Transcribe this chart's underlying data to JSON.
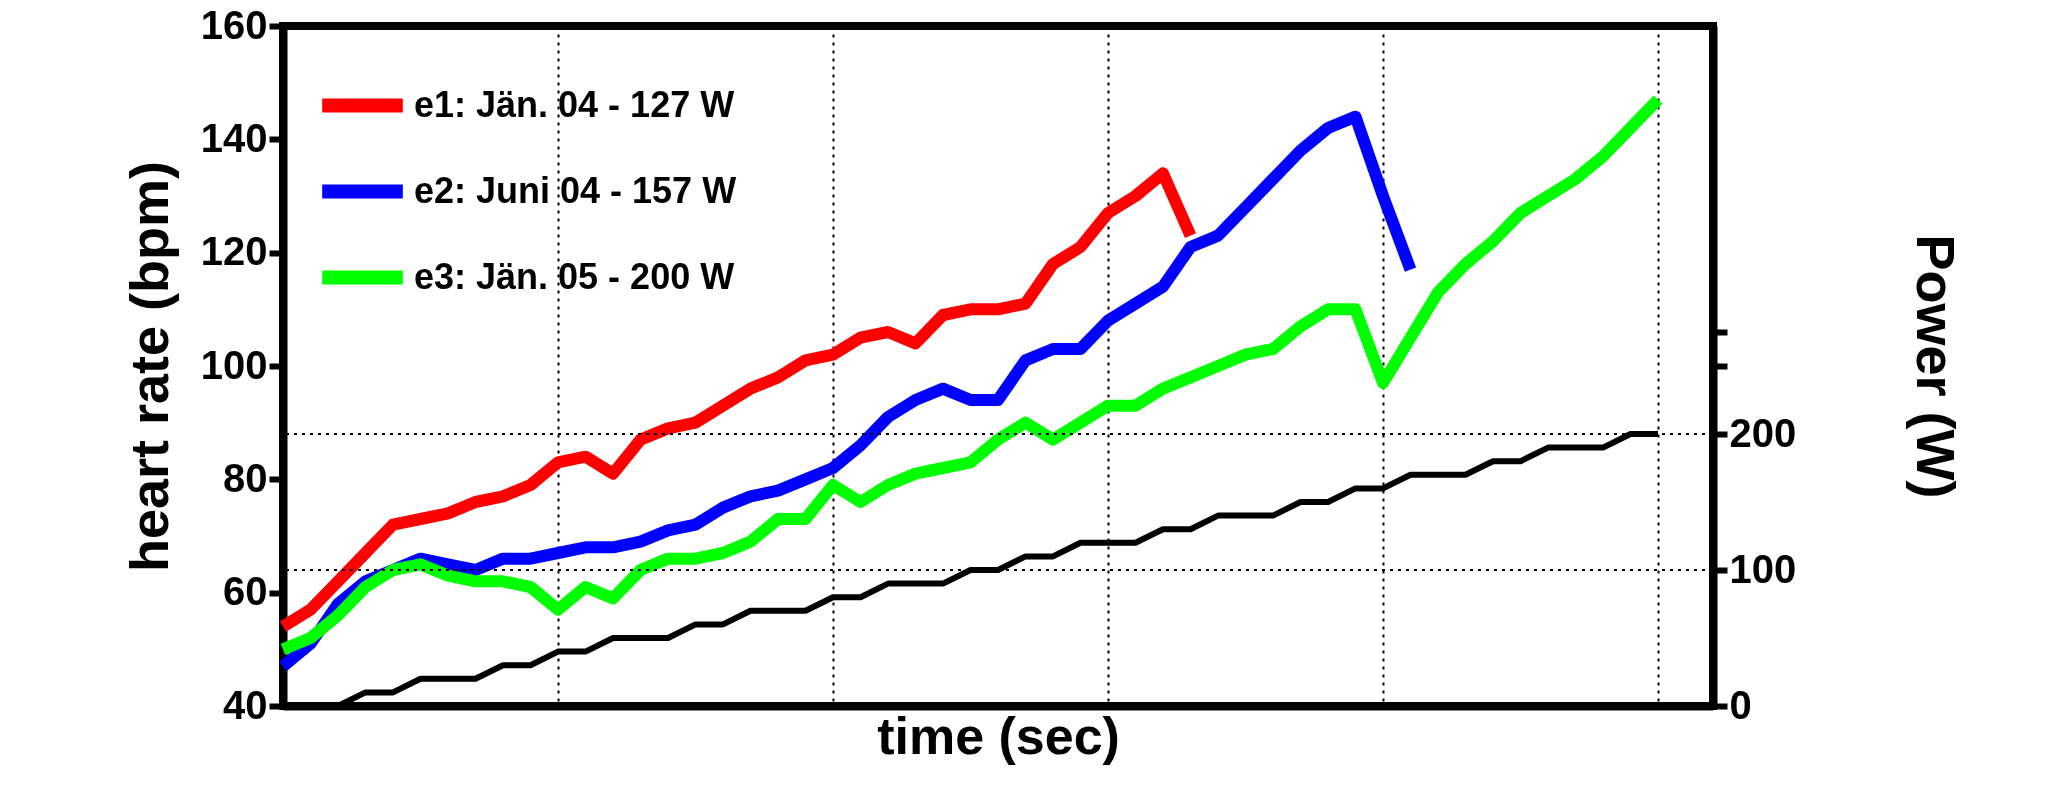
{
  "chart_data": {
    "type": "line",
    "xlabel": "time (sec)",
    "ylabel": "heart rate (bpm)",
    "y2label": "Power (W)",
    "categories": [
      null,
      null,
      null,
      null,
      null,
      null,
      null,
      null,
      null,
      null,
      null,
      null,
      null,
      null,
      null,
      null,
      null,
      null,
      null,
      null,
      null,
      null,
      null,
      null,
      null,
      null,
      null,
      null,
      null,
      null,
      null,
      null,
      null,
      null,
      null,
      null,
      null,
      null,
      null,
      null,
      null,
      null,
      null,
      null,
      null,
      null,
      null,
      null,
      null,
      null,
      null,
      null,
      null
    ],
    "series": [
      {
        "name": "e1: Jän. 04 - 127 W",
        "color": "#ff0000",
        "values": [
          54,
          57,
          62,
          67,
          72,
          73,
          74,
          76,
          77,
          79,
          83,
          84,
          81,
          87,
          89,
          90,
          93,
          96,
          98,
          101,
          102,
          105,
          106,
          104,
          109,
          110,
          110,
          111,
          118,
          121,
          127,
          130,
          134,
          123,
          null,
          null,
          null,
          null,
          null,
          null,
          null,
          null,
          null,
          null,
          null,
          null,
          null,
          null,
          null,
          null,
          null,
          null,
          null
        ]
      },
      {
        "name": "e2: Juni 04 - 157 W",
        "color": "#0000ff",
        "values": [
          47,
          51,
          58,
          62,
          64,
          66,
          65,
          64,
          66,
          66,
          67,
          68,
          68,
          69,
          71,
          72,
          75,
          77,
          78,
          80,
          82,
          86,
          91,
          94,
          96,
          94,
          94,
          101,
          103,
          103,
          108,
          111,
          114,
          121,
          123,
          128,
          133,
          138,
          142,
          144,
          130,
          117,
          null,
          null,
          null,
          null,
          null,
          null,
          null,
          null,
          null,
          null,
          null
        ]
      },
      {
        "name": "e3: Jän. 05 - 200 W",
        "color": "#00ff00",
        "values": [
          50,
          52,
          56,
          61,
          64,
          65,
          63,
          62,
          62,
          61,
          57,
          61,
          59,
          64,
          66,
          66,
          67,
          69,
          73,
          73,
          79,
          76,
          79,
          81,
          82,
          83,
          87,
          90,
          87,
          90,
          93,
          93,
          96,
          98,
          100,
          102,
          103,
          107,
          110,
          110,
          97,
          105,
          113,
          118,
          122,
          127,
          130,
          133,
          137,
          142,
          147,
          null,
          null
        ]
      },
      {
        "color": "#000000",
        "axis": "y2",
        "values": [
          null,
          null,
          0,
          10,
          10,
          20,
          20,
          20,
          30,
          30,
          40,
          40,
          50,
          50,
          50,
          60,
          60,
          70,
          70,
          70,
          80,
          80,
          90,
          90,
          90,
          100,
          100,
          110,
          110,
          120,
          120,
          120,
          130,
          130,
          140,
          140,
          140,
          150,
          150,
          160,
          160,
          170,
          170,
          170,
          180,
          180,
          190,
          190,
          190,
          200,
          200,
          null,
          null
        ]
      }
    ],
    "ylim": [
      40,
      160
    ],
    "yticks": [
      40,
      60,
      80,
      100,
      120,
      140,
      160
    ],
    "y2lim": [
      0,
      500
    ],
    "y2ticks": [
      0,
      100,
      200,
      {
        "value": 250,
        "label": null
      },
      {
        "value": 275,
        "label": null
      }
    ],
    "grid": true,
    "legend": "top left",
    "tick_labels": "y",
    "line_style": "solid"
  }
}
